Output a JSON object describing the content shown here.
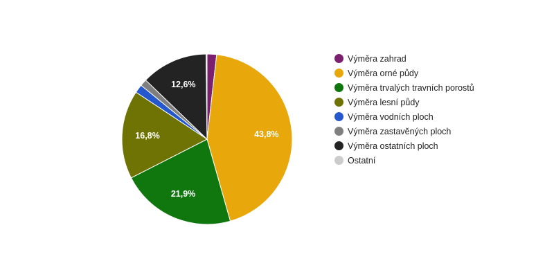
{
  "chart_data": {
    "type": "pie",
    "categories": [
      "Výměra zahrad",
      "Výměra orné půdy",
      "Výměra trvalých travních porostů",
      "Výměra lesní půdy",
      "Výměra vodních ploch",
      "Výměra zastavěných ploch",
      "Výměra ostatních ploch",
      "Ostatní"
    ],
    "values": [
      1.8,
      43.8,
      21.9,
      16.8,
      1.6,
      1.3,
      12.6,
      0.2
    ],
    "colors": [
      "#7b1f6f",
      "#e8a80c",
      "#10770f",
      "#6e7304",
      "#2557cd",
      "#7f7f7f",
      "#232323",
      "#cccccc"
    ],
    "data_labels": [
      "",
      "43,8%",
      "21,9%",
      "16,8%",
      "",
      "",
      "12,6%",
      ""
    ],
    "legend_position": "right"
  }
}
